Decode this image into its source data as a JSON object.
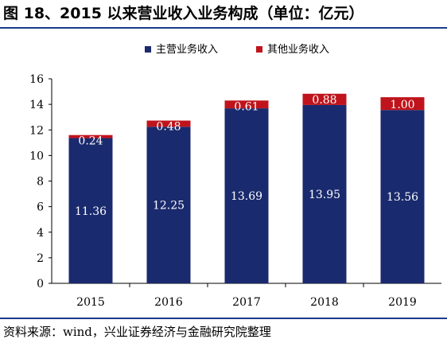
{
  "title": "图 18、2015 以来营业收入业务构成（单位：亿元）",
  "source": "资料来源：wind，兴业证券经济与金融研究院整理",
  "colors": {
    "primary": "#1a2a6e",
    "other": "#c0141c",
    "rule": "#1a3a8c"
  },
  "chart_data": {
    "type": "bar",
    "stacked": true,
    "categories": [
      "2015",
      "2016",
      "2017",
      "2018",
      "2019"
    ],
    "series": [
      {
        "name": "主营业务收入",
        "values": [
          11.36,
          12.25,
          13.69,
          13.95,
          13.56
        ],
        "labels": [
          "11.36",
          "12.25",
          "13.69",
          "13.95",
          "13.56"
        ]
      },
      {
        "name": "其他业务收入",
        "values": [
          0.24,
          0.48,
          0.61,
          0.88,
          1.0
        ],
        "labels": [
          "0.24",
          "0.48",
          "0.61",
          "0.88",
          "1.00"
        ]
      }
    ],
    "ylim": [
      0,
      16
    ],
    "yticks": [
      "0",
      "2",
      "4",
      "6",
      "8",
      "10",
      "12",
      "14",
      "16"
    ],
    "grid": false,
    "legend": "top-center"
  }
}
